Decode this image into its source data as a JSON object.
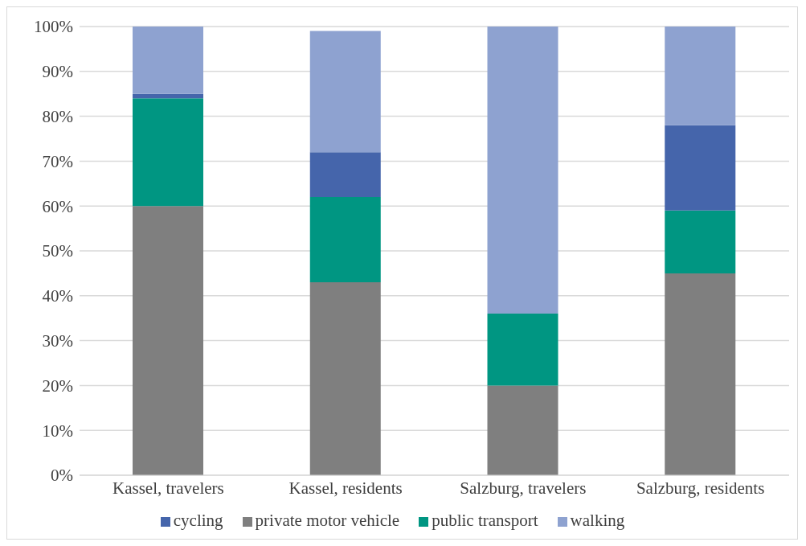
{
  "chart_data": {
    "type": "bar",
    "stacked": true,
    "categories": [
      "Kassel, travelers",
      "Kassel, residents",
      "Salzburg, travelers",
      "Salzburg, residents"
    ],
    "series": [
      {
        "name": "private motor vehicle",
        "color": "#7f7f7f",
        "values": [
          60,
          43,
          20,
          45
        ]
      },
      {
        "name": "public transport",
        "color": "#009682",
        "values": [
          24,
          19,
          16,
          14
        ]
      },
      {
        "name": "cycling",
        "color": "#4565ab",
        "values": [
          1,
          10,
          0,
          19
        ]
      },
      {
        "name": "walking",
        "color": "#8ea2d0",
        "values": [
          15,
          27,
          64,
          22
        ]
      }
    ],
    "ylim": [
      0,
      100
    ],
    "yticks": [
      {
        "value": 0,
        "label": "0%"
      },
      {
        "value": 10,
        "label": "10%"
      },
      {
        "value": 20,
        "label": "20%"
      },
      {
        "value": 30,
        "label": "30%"
      },
      {
        "value": 40,
        "label": "40%"
      },
      {
        "value": 50,
        "label": "50%"
      },
      {
        "value": 60,
        "label": "60%"
      },
      {
        "value": 70,
        "label": "70%"
      },
      {
        "value": 80,
        "label": "80%"
      },
      {
        "value": 90,
        "label": "90%"
      },
      {
        "value": 100,
        "label": "100%"
      }
    ],
    "grid": "y",
    "legend": "bottom"
  }
}
